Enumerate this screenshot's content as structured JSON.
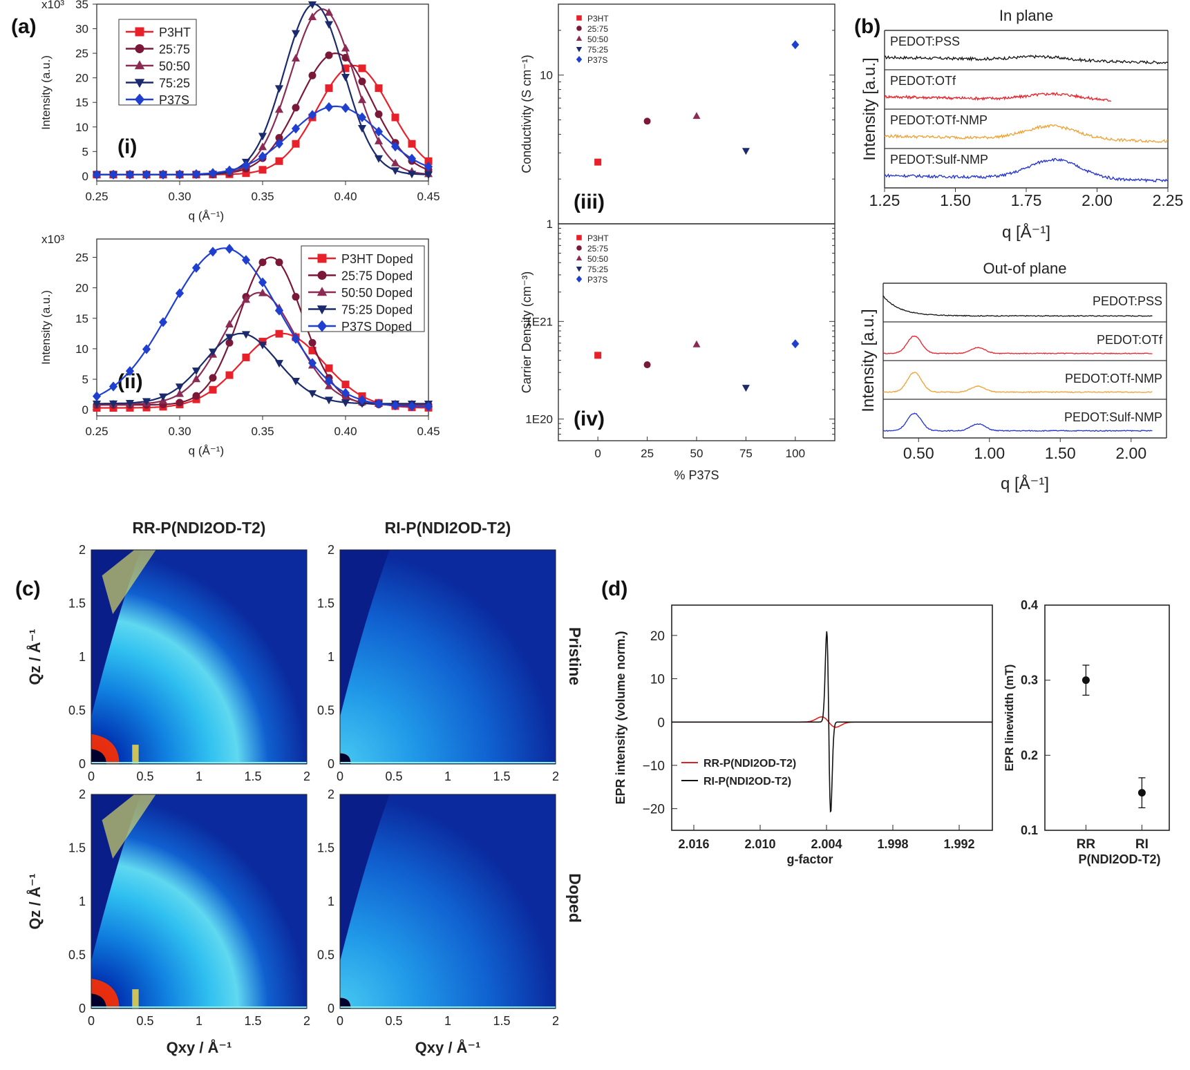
{
  "panel_labels": {
    "a": "(a)",
    "b": "(b)",
    "c": "(c)",
    "d": "(d)"
  },
  "chart_data": [
    {
      "id": "a_i",
      "type": "line",
      "roman": "(i)",
      "xlabel": "q (Å⁻¹)",
      "ylabel": "Intensity (a.u.)",
      "y_exp": "x10³",
      "xlim": [
        0.25,
        0.45
      ],
      "ylim": [
        -1,
        35
      ],
      "xticks": [
        "0.25",
        "0.30",
        "0.35",
        "0.40",
        "0.45"
      ],
      "yticks": [
        "0",
        "5",
        "10",
        "15",
        "20",
        "25",
        "30",
        "35"
      ],
      "legend_position": "top-left",
      "series": [
        {
          "name": "P3HT",
          "color": "#e8202a",
          "marker": "square",
          "peak": [
            0.405,
            22.5
          ],
          "sigma": 0.022,
          "base": 0.3
        },
        {
          "name": "25:75",
          "color": "#7a1838",
          "marker": "circle",
          "peak": [
            0.394,
            25
          ],
          "sigma": 0.022,
          "base": 0.3
        },
        {
          "name": "50:50",
          "color": "#8b2a52",
          "marker": "triangle-up",
          "peak": [
            0.386,
            34
          ],
          "sigma": 0.019,
          "base": 0.3
        },
        {
          "name": "75:25",
          "color": "#1a2a6c",
          "marker": "triangle-down",
          "peak": [
            0.381,
            35
          ],
          "sigma": 0.018,
          "base": 0.3
        },
        {
          "name": "P37S",
          "color": "#1f3fd1",
          "marker": "diamond",
          "peak": [
            0.394,
            14.2
          ],
          "sigma": 0.027,
          "base": 0.3
        }
      ]
    },
    {
      "id": "a_ii",
      "type": "line",
      "roman": "(ii)",
      "xlabel": "q (Å⁻¹)",
      "ylabel": "Intensity (a.u.)",
      "y_exp": "x10³",
      "xlim": [
        0.25,
        0.45
      ],
      "ylim": [
        -1,
        28
      ],
      "xticks": [
        "0.25",
        "0.30",
        "0.35",
        "0.40",
        "0.45"
      ],
      "yticks": [
        "0",
        "5",
        "10",
        "15",
        "20",
        "25"
      ],
      "legend_position": "top-right",
      "series": [
        {
          "name": "P3HT Doped",
          "color": "#e8202a",
          "marker": "square",
          "peak": [
            0.362,
            12.5
          ],
          "sigma": 0.025,
          "base": 0.3
        },
        {
          "name": "25:75 Doped",
          "color": "#7a1838",
          "marker": "circle",
          "peak": [
            0.355,
            25
          ],
          "sigma": 0.019,
          "base": 0.8
        },
        {
          "name": "50:50 Doped",
          "color": "#8b2a52",
          "marker": "triangle-up",
          "peak": [
            0.348,
            19.2
          ],
          "sigma": 0.022,
          "base": 0.9
        },
        {
          "name": "75:25 Doped",
          "color": "#1a2a6c",
          "marker": "triangle-down",
          "peak": [
            0.337,
            12.5
          ],
          "sigma": 0.022,
          "base": 1.0
        },
        {
          "name": "P37S Doped",
          "color": "#1f3fd1",
          "marker": "diamond",
          "peak": [
            0.327,
            26.5
          ],
          "sigma": 0.033,
          "base": 0.5
        }
      ]
    },
    {
      "id": "a_iii",
      "type": "scatter",
      "roman": "(iii)",
      "ylabel": "Conductivity (S cm⁻¹)",
      "yscale": "log",
      "ylim": [
        1,
        30
      ],
      "xlim": [
        -20,
        120
      ],
      "yticks": [
        "1",
        "10"
      ],
      "legend_position": "top-left",
      "series": [
        {
          "name": "P3HT",
          "color": "#e8202a",
          "marker": "square",
          "x": 0,
          "y": 2.6
        },
        {
          "name": "25:75",
          "color": "#7a1838",
          "marker": "circle",
          "x": 25,
          "y": 4.9
        },
        {
          "name": "50:50",
          "color": "#8b2a52",
          "marker": "triangle-up",
          "x": 50,
          "y": 5.3
        },
        {
          "name": "75:25",
          "color": "#1a2a6c",
          "marker": "triangle-down",
          "x": 75,
          "y": 3.1
        },
        {
          "name": "P37S",
          "color": "#1f3fd1",
          "marker": "diamond",
          "x": 100,
          "y": 16
        }
      ]
    },
    {
      "id": "a_iv",
      "type": "scatter",
      "roman": "(iv)",
      "xlabel": "% P37S",
      "ylabel": "Carrier Density (cm⁻³)",
      "yscale": "log",
      "ylim": [
        6e+19,
        1e+22
      ],
      "xlim": [
        -20,
        120
      ],
      "xticks": [
        "0",
        "25",
        "50",
        "75",
        "100"
      ],
      "yticks": [
        "1E20",
        "1E21"
      ],
      "legend_position": "top-left",
      "series": [
        {
          "name": "P3HT",
          "color": "#e8202a",
          "marker": "square",
          "x": 0,
          "y": 4.5e+20
        },
        {
          "name": "25:75",
          "color": "#7a1838",
          "marker": "circle",
          "x": 25,
          "y": 3.6e+20
        },
        {
          "name": "50:50",
          "color": "#8b2a52",
          "marker": "triangle-up",
          "x": 50,
          "y": 5.8e+20
        },
        {
          "name": "75:25",
          "color": "#1a2a6c",
          "marker": "triangle-down",
          "x": 75,
          "y": 2.1e+20
        },
        {
          "name": "P37S",
          "color": "#1f3fd1",
          "marker": "diamond",
          "x": 100,
          "y": 5.9e+20
        }
      ]
    },
    {
      "id": "b_in",
      "type": "line",
      "title": "In plane",
      "xlabel": "q [Å⁻¹]",
      "ylabel": "Intensity [a.u.]",
      "xlim": [
        1.25,
        2.25
      ],
      "xticks": [
        "1.25",
        "1.50",
        "1.75",
        "2.00",
        "2.25"
      ],
      "series": [
        {
          "name": "PEDOT:PSS",
          "color": "#111111",
          "peaks": [
            [
              1.8,
              0.15
            ]
          ],
          "end": 2.25
        },
        {
          "name": "PEDOT:OTf",
          "color": "#e8202a",
          "peaks": [
            [
              1.85,
              0.25
            ]
          ],
          "end": 2.05
        },
        {
          "name": "PEDOT:OTf-NMP",
          "color": "#f0a030",
          "peaks": [
            [
              1.84,
              0.55
            ]
          ],
          "end": 2.25
        },
        {
          "name": "PEDOT:Sulf-NMP",
          "color": "#1f2fd1",
          "peaks": [
            [
              1.85,
              0.8
            ]
          ],
          "end": 2.25
        }
      ]
    },
    {
      "id": "b_out",
      "type": "line",
      "title": "Out-of plane",
      "xlabel": "q [Å⁻¹]",
      "ylabel": "Intensity [a.u.]",
      "xlim": [
        0.25,
        2.25
      ],
      "xticks": [
        "0.50",
        "1.00",
        "1.50",
        "2.00"
      ],
      "series": [
        {
          "name": "PEDOT:PSS",
          "color": "#111111",
          "peaks": [],
          "end": 2.15
        },
        {
          "name": "PEDOT:OTf",
          "color": "#e8202a",
          "peaks": [
            [
              0.47,
              0.75
            ],
            [
              0.92,
              0.25
            ]
          ],
          "end": 2.15
        },
        {
          "name": "PEDOT:OTf-NMP",
          "color": "#f0a030",
          "peaks": [
            [
              0.47,
              0.85
            ],
            [
              0.92,
              0.25
            ]
          ],
          "end": 2.15
        },
        {
          "name": "PEDOT:Sulf-NMP",
          "color": "#1f2fd1",
          "peaks": [
            [
              0.47,
              0.75
            ],
            [
              0.92,
              0.3
            ]
          ],
          "end": 2.15
        }
      ]
    },
    {
      "id": "c",
      "type": "heatmap",
      "columns": [
        "RR-P(NDI2OD-T2)",
        "RI-P(NDI2OD-T2)"
      ],
      "rows": [
        "Pristine",
        "Doped"
      ],
      "xlabel": "Qxy / Å⁻¹",
      "ylabel": "Qz / Å⁻¹",
      "xlim": [
        0,
        2
      ],
      "ylim": [
        0,
        2
      ],
      "xticks": [
        "0",
        "0.5",
        "1",
        "1.5",
        "2"
      ],
      "yticks": [
        "0",
        "0.5",
        "1",
        "1.5",
        "2"
      ]
    },
    {
      "id": "d_main",
      "type": "line",
      "xlabel": "g-factor",
      "ylabel": "EPR intensity (volume norm.)",
      "xlim": [
        2.018,
        1.989
      ],
      "ylim": [
        -25,
        27
      ],
      "xticks": [
        "2.016",
        "2.010",
        "2.004",
        "1.998",
        "1.992"
      ],
      "yticks": [
        "20",
        "10",
        "0",
        "−10",
        "−20"
      ],
      "legend_position": "bottom-left",
      "series": [
        {
          "name": "RR-P(NDI2OD-T2)",
          "color": "#e02020",
          "amp": 1.2,
          "width": 0.0009
        },
        {
          "name": "RI-P(NDI2OD-T2)",
          "color": "#111111",
          "amp": 21,
          "width": 0.00025
        }
      ]
    },
    {
      "id": "d_side",
      "type": "scatter",
      "ylabel": "EPR linewidth (mT)",
      "ylim": [
        0.1,
        0.4
      ],
      "yticks": [
        "0.1",
        "0.2",
        "0.3",
        "0.4"
      ],
      "categories": [
        "RR",
        "RI"
      ],
      "xlabel": "P(NDI2OD-T2)",
      "values": [
        0.3,
        0.15
      ],
      "errors": [
        0.02,
        0.02
      ]
    }
  ]
}
